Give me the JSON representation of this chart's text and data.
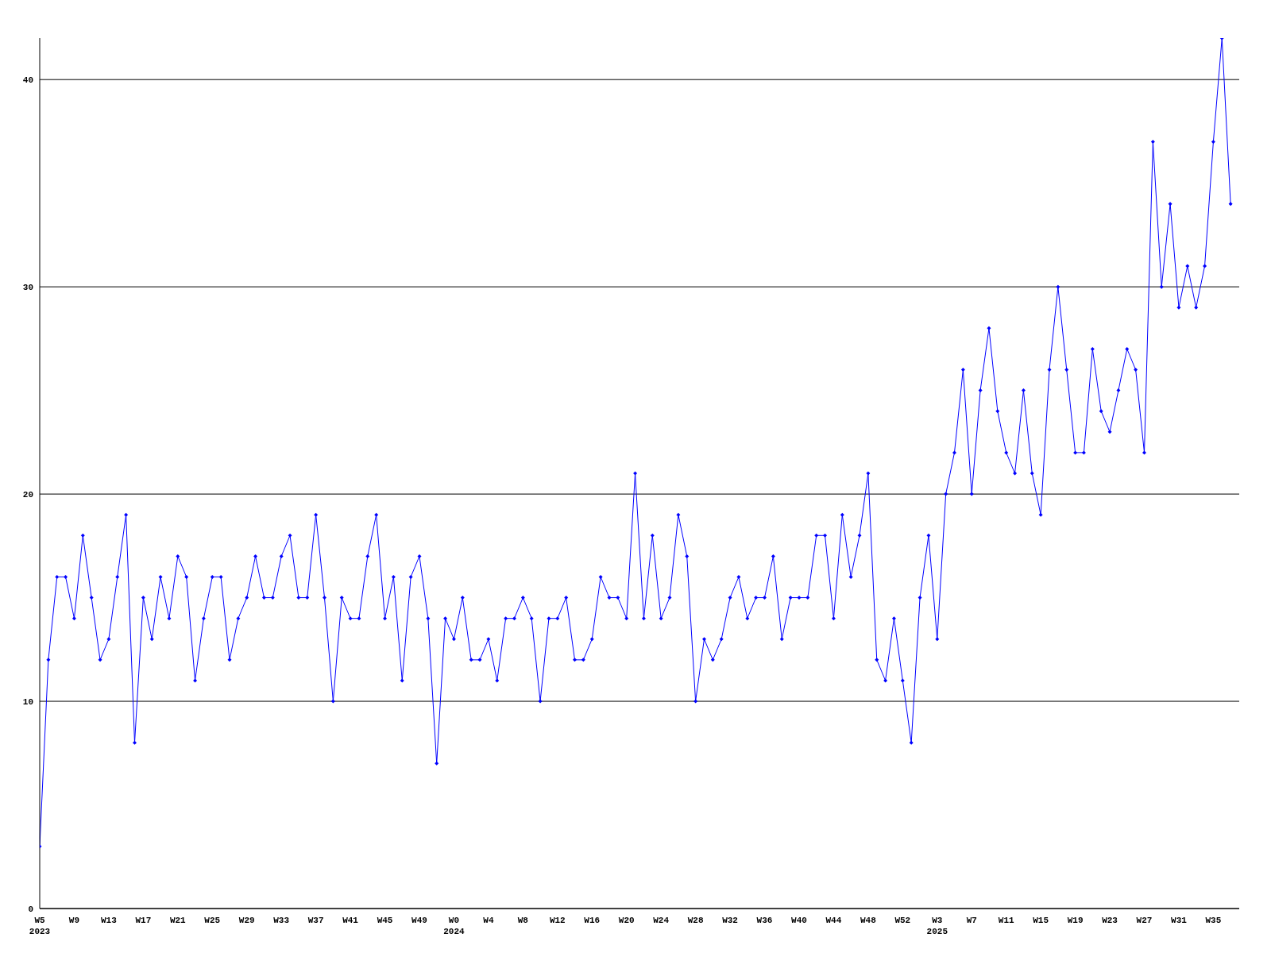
{
  "chart_data": {
    "type": "line",
    "categories": [
      "W5\n2023",
      null,
      null,
      null,
      "W9",
      null,
      null,
      null,
      "W13",
      null,
      null,
      null,
      "W17",
      null,
      null,
      null,
      "W21",
      null,
      null,
      null,
      "W25",
      null,
      null,
      null,
      "W29",
      null,
      null,
      null,
      "W33",
      null,
      null,
      null,
      "W37",
      null,
      null,
      null,
      "W41",
      null,
      null,
      null,
      "W45",
      null,
      null,
      null,
      "W49",
      null,
      null,
      null,
      "W0\n2024",
      null,
      null,
      null,
      "W4",
      null,
      null,
      null,
      "W8",
      null,
      null,
      null,
      "W12",
      null,
      null,
      null,
      "W16",
      null,
      null,
      null,
      "W20",
      null,
      null,
      null,
      "W24",
      null,
      null,
      null,
      "W28",
      null,
      null,
      null,
      "W32",
      null,
      null,
      null,
      "W36",
      null,
      null,
      null,
      "W40",
      null,
      null,
      null,
      "W44",
      null,
      null,
      null,
      "W48",
      null,
      null,
      null,
      "W52",
      null,
      null,
      null,
      "W3\n2025",
      null,
      null,
      null,
      "W7",
      null,
      null,
      null,
      "W11",
      null,
      null,
      null,
      "W15",
      null,
      null,
      null,
      "W19",
      null,
      null,
      null,
      "W23",
      null,
      null,
      null,
      "W27",
      null,
      null,
      null,
      "W31",
      null,
      null,
      null,
      "W35",
      null,
      null,
      null
    ],
    "series": [
      {
        "color": "#0000ff",
        "values": [
          3,
          12,
          16,
          16,
          14,
          18,
          15,
          12,
          13,
          16,
          19,
          8,
          15,
          13,
          16,
          14,
          17,
          16,
          11,
          14,
          16,
          16,
          12,
          14,
          15,
          17,
          15,
          15,
          17,
          18,
          15,
          15,
          19,
          15,
          10,
          15,
          14,
          14,
          17,
          19,
          14,
          16,
          11,
          16,
          17,
          14,
          7,
          14,
          13,
          15,
          12,
          12,
          13,
          11,
          14,
          14,
          15,
          14,
          10,
          14,
          14,
          15,
          12,
          12,
          13,
          16,
          15,
          15,
          14,
          21,
          14,
          18,
          14,
          15,
          19,
          17,
          10,
          13,
          12,
          13,
          15,
          16,
          14,
          15,
          15,
          17,
          13,
          15,
          15,
          15,
          18,
          18,
          14,
          19,
          16,
          18,
          21,
          12,
          11,
          14,
          11,
          8,
          15,
          18,
          13,
          20,
          22,
          26,
          20,
          25,
          28,
          24,
          22,
          21,
          25,
          21,
          19,
          26,
          30,
          26,
          22,
          22,
          27,
          24,
          23,
          25,
          27,
          26,
          22,
          37,
          30,
          34,
          29,
          31,
          29,
          31,
          37,
          42,
          34,
          null
        ]
      }
    ],
    "ylim": [
      0,
      42
    ],
    "yticks": [
      0,
      10,
      20,
      30,
      40
    ],
    "grid": "y",
    "marker": "diamond",
    "line_style": "solid"
  }
}
